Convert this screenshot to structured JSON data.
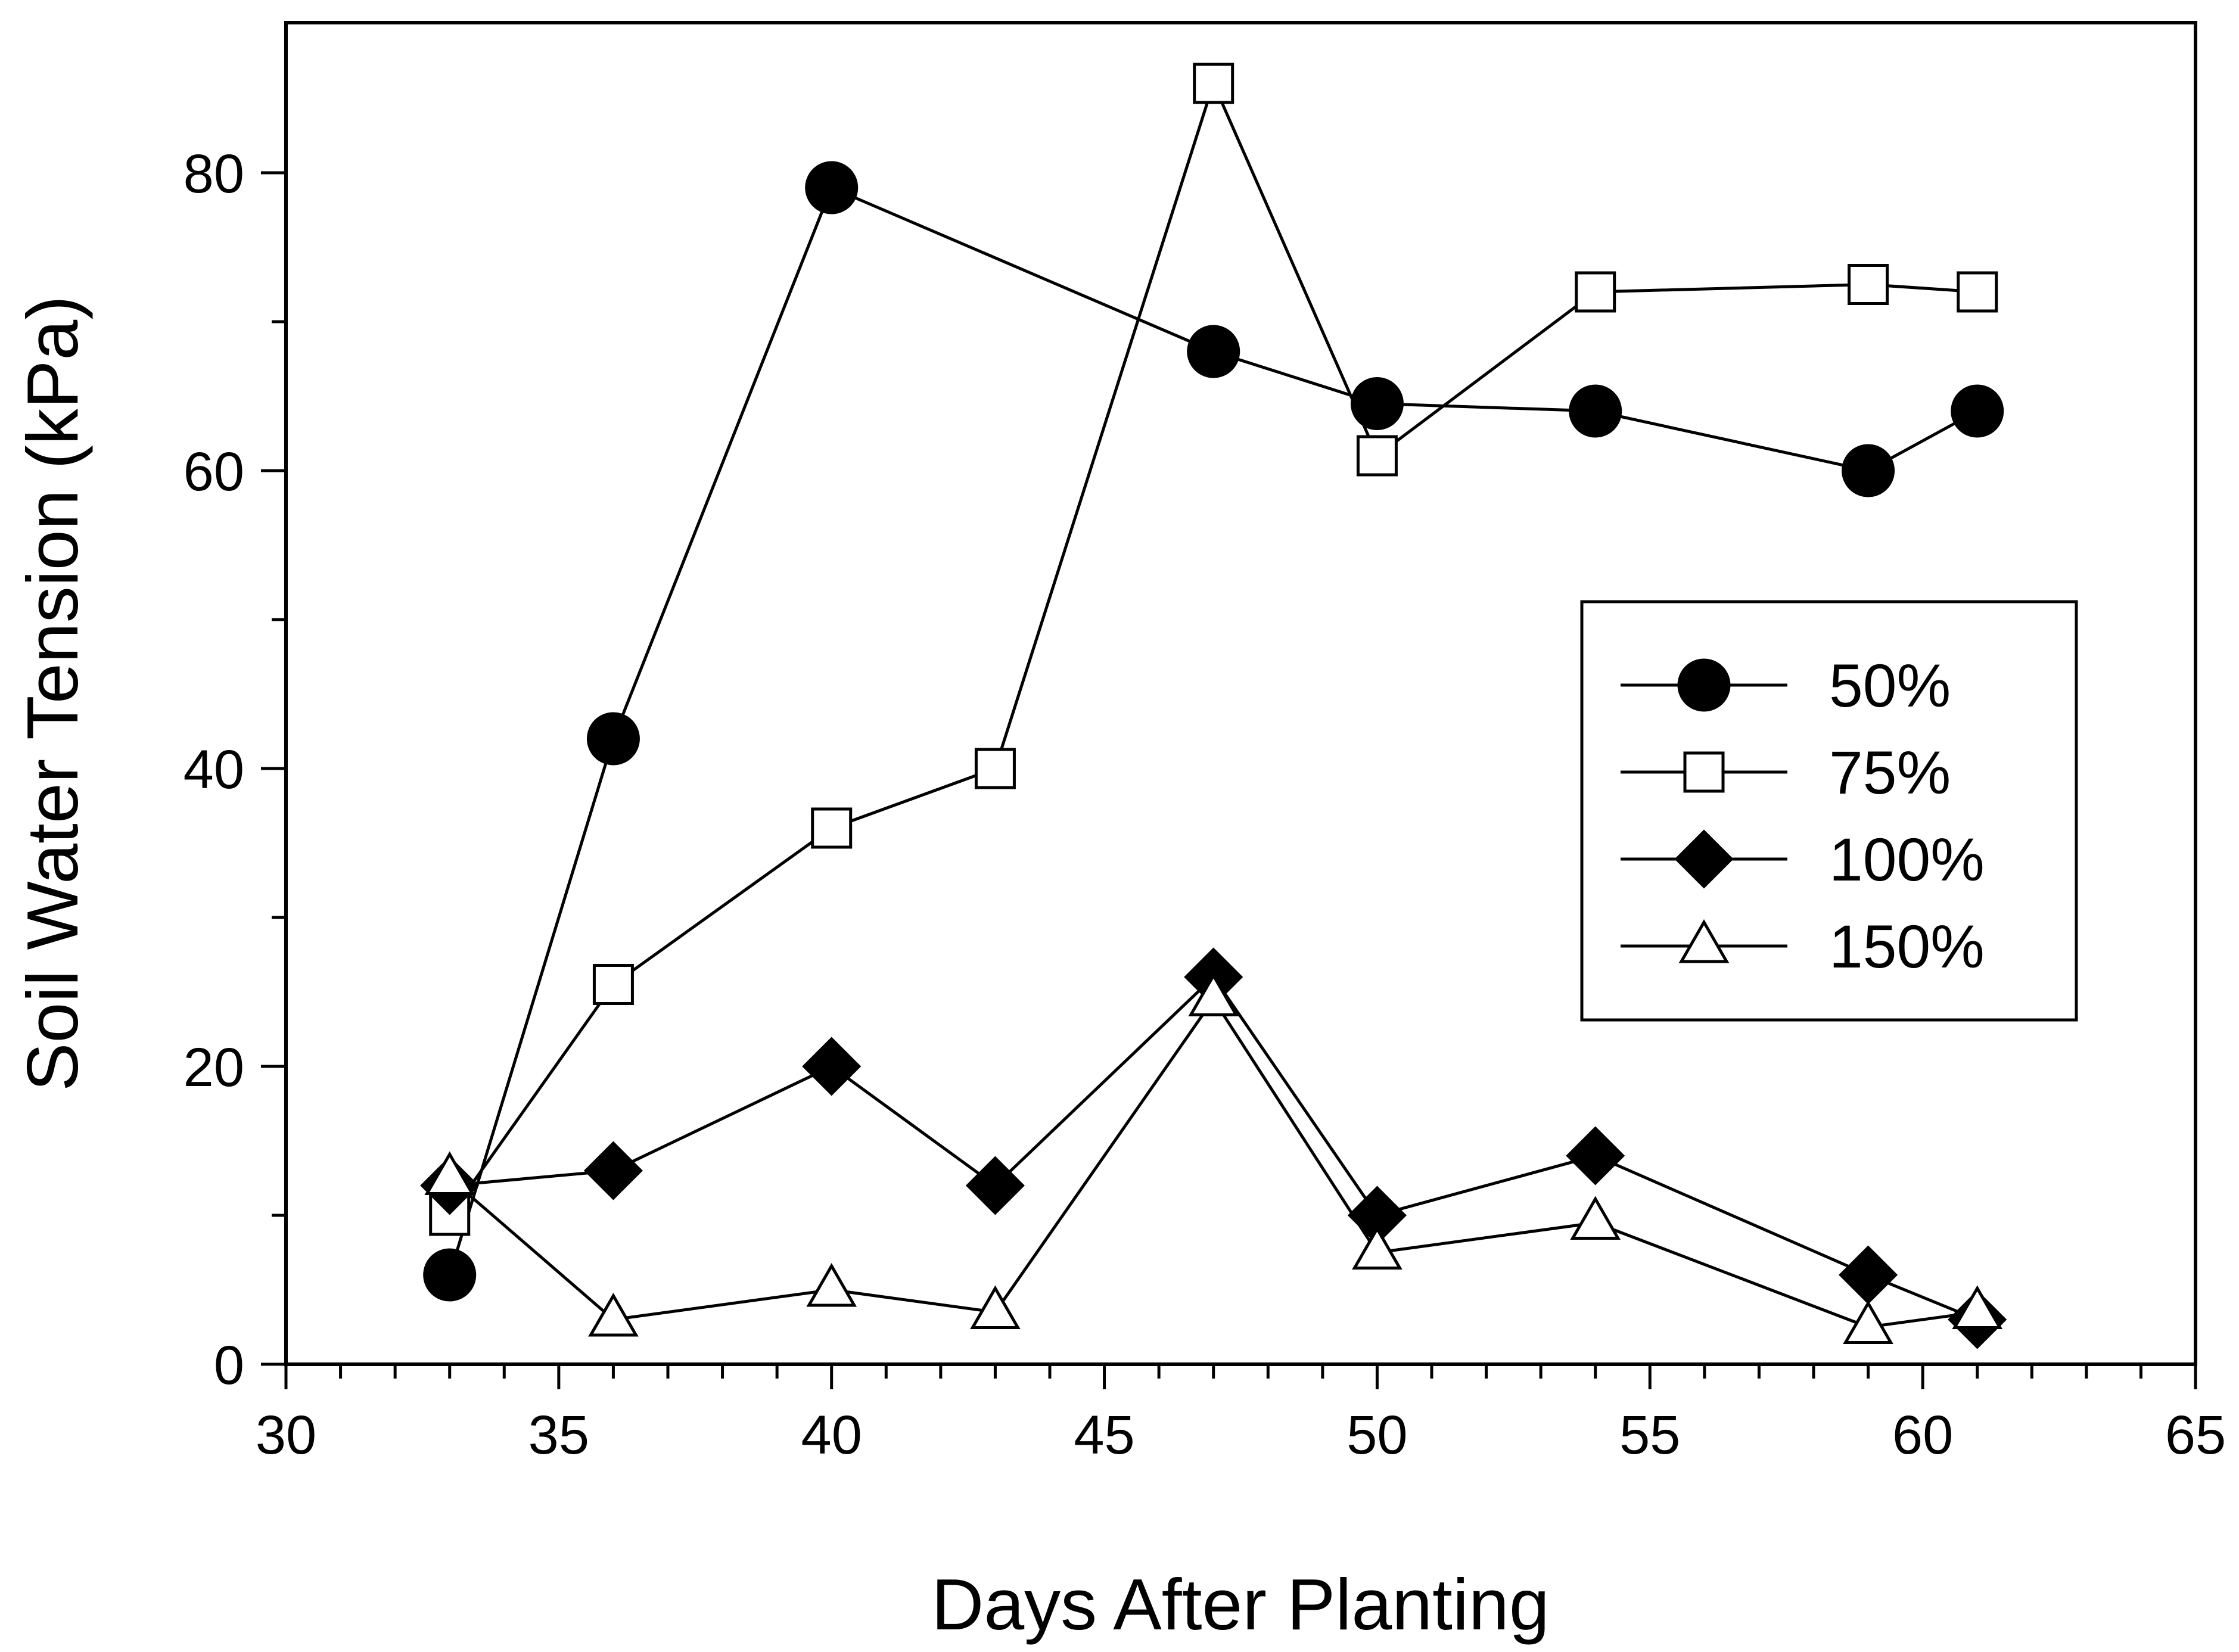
{
  "chart_data": {
    "type": "line",
    "title": "",
    "xlabel": "Days After Planting",
    "ylabel": "Soil Water Tension (kPa)",
    "xlim": [
      30,
      65
    ],
    "ylim": [
      0,
      90
    ],
    "x_major_ticks": [
      30,
      35,
      40,
      45,
      50,
      55,
      60,
      65
    ],
    "x_tick_labels": [
      "30",
      "35",
      "40",
      "45",
      "50",
      "55",
      "60",
      "65"
    ],
    "x_minor_step": 1,
    "y_major_ticks": [
      0,
      20,
      40,
      60,
      80
    ],
    "y_tick_labels": [
      "0",
      "20",
      "40",
      "60",
      "80"
    ],
    "y_minor_step": 10,
    "grid": false,
    "legend_position": "center-right",
    "series": [
      {
        "name": "50%",
        "marker": "circle",
        "fill": "#000000",
        "x": [
          33,
          36,
          40,
          47,
          50,
          54,
          59,
          61
        ],
        "y": [
          6,
          42,
          79,
          68,
          64.5,
          64,
          60,
          64
        ]
      },
      {
        "name": "75%",
        "marker": "square",
        "fill": "#ffffff",
        "x": [
          33,
          36,
          40,
          43,
          47,
          50,
          54,
          59,
          61
        ],
        "y": [
          10,
          25.5,
          36,
          40,
          86,
          61,
          72,
          72.5,
          72
        ]
      },
      {
        "name": "100%",
        "marker": "diamond",
        "fill": "#000000",
        "x": [
          33,
          36,
          40,
          43,
          47,
          50,
          54,
          59,
          61
        ],
        "y": [
          12,
          13,
          20,
          12,
          26,
          10,
          14,
          6,
          3
        ]
      },
      {
        "name": "150%",
        "marker": "triangle",
        "fill": "#ffffff",
        "x": [
          33,
          36,
          40,
          43,
          47,
          50,
          54,
          59,
          61
        ],
        "y": [
          12.5,
          3,
          5,
          3.5,
          24.5,
          7.5,
          9.5,
          2.5,
          3.5
        ]
      }
    ]
  }
}
